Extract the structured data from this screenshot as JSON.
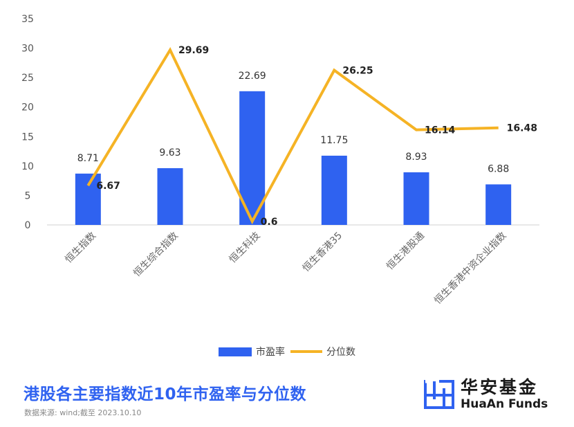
{
  "chart_data": {
    "type": "bar+line",
    "categories": [
      "恒生指数",
      "恒生综合指数",
      "恒生科技",
      "恒生香港35",
      "恒生港股通",
      "恒生香港中资企业指数"
    ],
    "series": [
      {
        "name": "市盈率",
        "type": "bar",
        "values": [
          8.71,
          9.63,
          22.69,
          11.75,
          8.93,
          6.88
        ],
        "color": "#2f62f0"
      },
      {
        "name": "分位数",
        "type": "line",
        "values": [
          6.67,
          29.69,
          0.6,
          26.25,
          16.14,
          16.48
        ],
        "color": "#f5b325"
      }
    ],
    "yticks": [
      0,
      5,
      10,
      15,
      20,
      25,
      30,
      35
    ],
    "ylim": [
      0,
      35
    ],
    "grid": false,
    "legend": "bottom-center"
  },
  "title": "港股各主要指数近10年市盈率与分位数",
  "source": "数据来源: wind;截至 2023.10.10",
  "brand": {
    "cn": "华安基金",
    "en": "HuaAn Funds",
    "icon": "huaan-logo-icon"
  }
}
